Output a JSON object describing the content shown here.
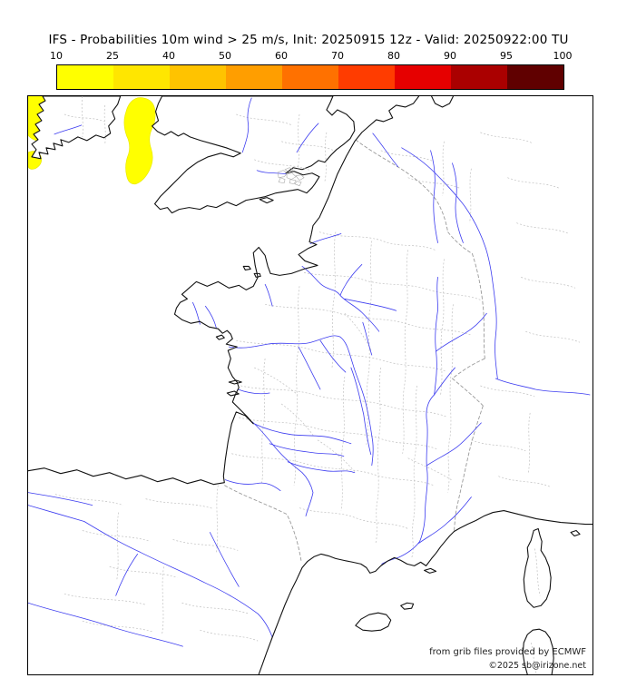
{
  "title": "IFS - Probabilities 10m wind > 25 m/s, Init: 20250915 12z - Valid: 20250922:00 TU",
  "legend": {
    "labels": [
      "10",
      "25",
      "40",
      "50",
      "60",
      "70",
      "80",
      "90",
      "95",
      "100"
    ],
    "colors": [
      "#ffff00",
      "#ffe600",
      "#ffc300",
      "#ff9e00",
      "#ff7100",
      "#ff3c00",
      "#e60000",
      "#aa0000",
      "#600000"
    ]
  },
  "map": {
    "attribution_line1": "from grib files provided by ECMWF",
    "attribution_line2": "©2025 sb@irizone.net",
    "colors": {
      "coastline": "#111111",
      "rivers": "#3c3cf0",
      "admin_boundaries": "#c0c0c0",
      "country_borders": "#999999",
      "probability_patch": "#ffff00"
    }
  }
}
